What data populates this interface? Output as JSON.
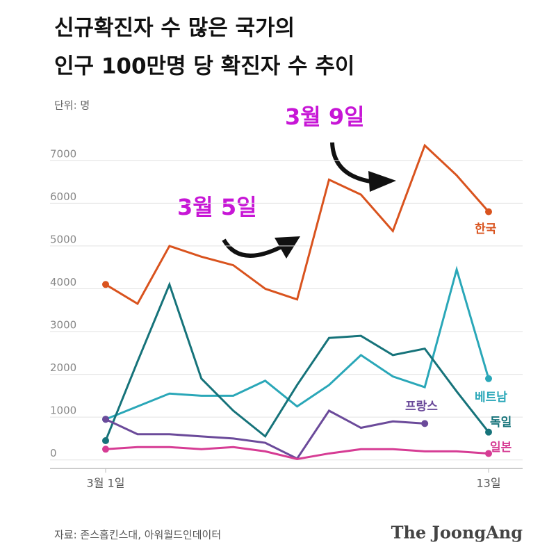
{
  "chart_data": {
    "type": "line",
    "title": [
      "신규확진자 수 많은 국가의",
      "인구 100만명 당 확진자 수 추이"
    ],
    "unit_label": "단위: 명",
    "categories": [
      "3월 1일",
      null,
      null,
      null,
      null,
      null,
      null,
      null,
      null,
      null,
      null,
      null,
      "13일"
    ],
    "ylim": [
      -200,
      7500
    ],
    "yticks": [
      0,
      1000,
      2000,
      3000,
      4000,
      5000,
      6000,
      7000
    ],
    "grid": true,
    "series": [
      {
        "name": "한국",
        "color": "#d9531e",
        "values": [
          4100,
          3650,
          5000,
          4750,
          4550,
          4000,
          3750,
          6550,
          6200,
          5350,
          7350,
          6650,
          5800
        ]
      },
      {
        "name": "베트남",
        "color": "#2aa7b8",
        "values": [
          950,
          1250,
          1550,
          1500,
          1500,
          1850,
          1250,
          1750,
          2450,
          1950,
          1700,
          4450,
          1900
        ]
      },
      {
        "name": "독일",
        "color": "#16737a",
        "values": [
          450,
          2300,
          4100,
          1900,
          1150,
          550,
          1750,
          2850,
          2900,
          2450,
          2600,
          1600,
          650
        ]
      },
      {
        "name": "프랑스",
        "color": "#6b4a9a",
        "values": [
          950,
          600,
          600,
          550,
          500,
          400,
          30,
          1150,
          750,
          900,
          850,
          null,
          null
        ]
      },
      {
        "name": "일본",
        "color": "#d63c94",
        "values": [
          250,
          300,
          300,
          250,
          300,
          200,
          20,
          150,
          250,
          250,
          200,
          200,
          150
        ]
      }
    ],
    "annotations": [
      "3월 5일",
      "3월 9일"
    ],
    "source": "자료: 존스홉킨스대, 아워월드인데이터",
    "logo": "The JoongAng"
  }
}
